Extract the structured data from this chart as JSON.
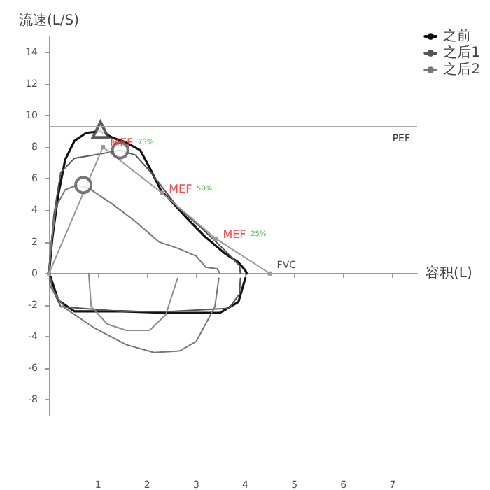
{
  "chart_data": {
    "type": "line",
    "ylabel": "流速(L/S)",
    "xlabel": "容积(L)",
    "xlim": [
      0,
      7.5
    ],
    "ylim": [
      -9,
      15
    ],
    "xticks": [
      1,
      2,
      3,
      4,
      5,
      6,
      7
    ],
    "yticks": [
      -8,
      -6,
      -4,
      -2,
      0,
      2,
      4,
      6,
      8,
      10,
      12,
      14
    ],
    "legend": "top right",
    "marker": "none",
    "line_style": "solid",
    "series": [
      {
        "name": "之前",
        "color": "#111111",
        "x": [
          0,
          0.07,
          0.19,
          0.33,
          0.52,
          0.76,
          1.05,
          1.29,
          1.57,
          1.86,
          2.05,
          2.29,
          2.43,
          2.81,
          3.19,
          3.57,
          3.86,
          4.0,
          4.03
        ],
        "values": [
          0,
          2.3,
          5.0,
          7.2,
          8.4,
          8.9,
          9.0,
          8.6,
          8.3,
          7.8,
          6.7,
          5.2,
          4.8,
          3.5,
          2.3,
          1.3,
          0.7,
          0.2,
          0
        ]
      },
      {
        "color": "#111111",
        "x": [
          0.03,
          0.05,
          0.19,
          0.52,
          1.5,
          2.5,
          3.48,
          3.86,
          4.0
        ],
        "values": [
          -0.2,
          -0.4,
          -1.7,
          -2.4,
          -2.4,
          -2.5,
          -2.5,
          -1.8,
          -0.3
        ]
      },
      {
        "name": "之后1",
        "color": "#555555",
        "x": [
          0,
          0.1,
          0.24,
          0.52,
          1.1,
          1.45,
          1.76,
          2.05,
          2.62,
          3.1,
          3.57,
          3.88,
          3.9
        ],
        "values": [
          0,
          3.7,
          6.4,
          7.3,
          7.6,
          7.8,
          7.5,
          6.5,
          4.2,
          2.9,
          1.5,
          0.5,
          0
        ]
      },
      {
        "color": "#555555",
        "x": [
          0.03,
          0.07,
          0.24,
          1.5,
          2.5,
          3.67,
          3.88,
          3.9
        ],
        "values": [
          -0.3,
          -1.0,
          -2.1,
          -2.4,
          -2.4,
          -2.2,
          -1.3,
          -0.3
        ]
      },
      {
        "name": "之后2",
        "color": "#777777",
        "x": [
          0,
          0.03,
          0.14,
          0.33,
          0.57,
          0.81,
          1.29,
          1.76,
          2.24,
          2.62,
          3.0,
          3.19,
          3.43,
          3.48
        ],
        "values": [
          0,
          1.5,
          4.2,
          5.3,
          5.6,
          5.4,
          4.4,
          3.3,
          2.0,
          1.6,
          1.1,
          0.4,
          0.3,
          0
        ]
      },
      {
        "color": "#777777",
        "x": [
          0.01,
          0.02,
          0.33,
          0.9,
          1.57,
          2.14,
          2.66,
          3.0,
          3.38,
          3.46
        ],
        "values": [
          -0.3,
          -0.8,
          -2.2,
          -3.4,
          -4.5,
          -5.0,
          -4.9,
          -4.3,
          -2.1,
          -0.3
        ]
      },
      {
        "color": "#8c8c8c",
        "x": [
          0.81,
          0.86,
          1.19,
          1.57,
          2.05,
          2.38,
          2.62
        ],
        "values": [
          0,
          -2.1,
          -3.2,
          -3.6,
          -3.6,
          -2.6,
          -0.3
        ]
      },
      {
        "color": "#9a9a9a",
        "marker": "square",
        "x": [
          0,
          1.1,
          2.3,
          3.4,
          4.5
        ],
        "values": [
          0,
          8.0,
          5.1,
          2.2,
          0
        ]
      },
      {
        "type": "scatter",
        "color": "#555555",
        "marker": "circle",
        "x": [
          1.45,
          0.7
        ],
        "values": [
          7.8,
          5.6
        ]
      },
      {
        "type": "scatter",
        "color": "#333333",
        "marker": "triangle",
        "x": [
          1.05
        ],
        "values": [
          9.1
        ]
      }
    ],
    "ref_lines": [
      {
        "axis": "y",
        "value": 9.3,
        "label": "PEF",
        "color": "#aaaaaa"
      }
    ],
    "annotations": [
      {
        "text": "MEF 75%",
        "x": 1.1,
        "y": 8.0
      },
      {
        "text": "MEF 50%",
        "x": 2.3,
        "y": 5.1
      },
      {
        "text": "MEF 25%",
        "x": 3.4,
        "y": 2.2
      },
      {
        "text": "FVC",
        "x": 4.5,
        "y": 0
      }
    ]
  }
}
